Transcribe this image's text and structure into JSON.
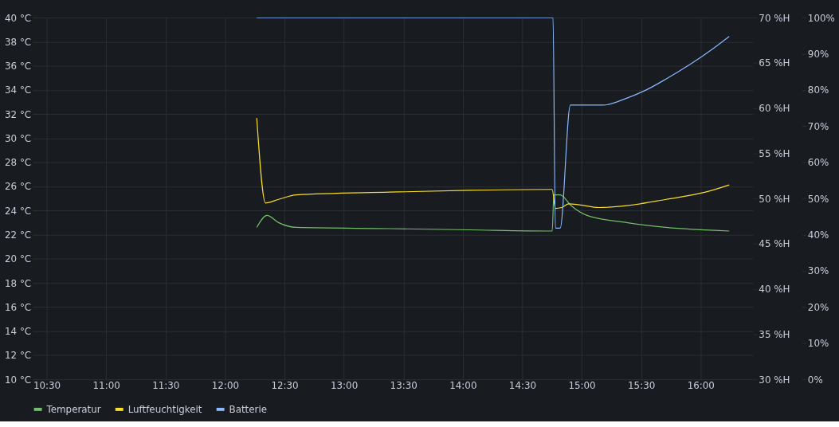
{
  "chart_data": {
    "type": "line",
    "xlim": [
      10.38,
      16.44
    ],
    "xticks": [
      {
        "value": 10.5,
        "label": "10:30"
      },
      {
        "value": 11,
        "label": "11:00"
      },
      {
        "value": 11.5,
        "label": "11:30"
      },
      {
        "value": 12,
        "label": "12:00"
      },
      {
        "value": 12.5,
        "label": "12:30"
      },
      {
        "value": 13,
        "label": "13:00"
      },
      {
        "value": 13.5,
        "label": "13:30"
      },
      {
        "value": 14,
        "label": "14:00"
      },
      {
        "value": 14.5,
        "label": "14:30"
      },
      {
        "value": 15,
        "label": "15:00"
      },
      {
        "value": 15.5,
        "label": "15:30"
      },
      {
        "value": 16,
        "label": "16:00"
      }
    ],
    "ylim": [
      10,
      40
    ],
    "yticks": [
      {
        "value": 10,
        "label": "10 °C"
      },
      {
        "value": 12,
        "label": "12 °C"
      },
      {
        "value": 14,
        "label": "14 °C"
      },
      {
        "value": 16,
        "label": "16 °C"
      },
      {
        "value": 18,
        "label": "18 °C"
      },
      {
        "value": 20,
        "label": "20 °C"
      },
      {
        "value": 22,
        "label": "22 °C"
      },
      {
        "value": 24,
        "label": "24 °C"
      },
      {
        "value": 26,
        "label": "26 °C"
      },
      {
        "value": 28,
        "label": "28 °C"
      },
      {
        "value": 30,
        "label": "30 °C"
      },
      {
        "value": 32,
        "label": "32 °C"
      },
      {
        "value": 34,
        "label": "34 °C"
      },
      {
        "value": 36,
        "label": "36 °C"
      },
      {
        "value": 38,
        "label": "38 °C"
      },
      {
        "value": 40,
        "label": "40 °C"
      }
    ],
    "y2lim": [
      30,
      70
    ],
    "y2ticks": [
      {
        "value": 30,
        "label": "30 %H"
      },
      {
        "value": 35,
        "label": "35 %H"
      },
      {
        "value": 40,
        "label": "40 %H"
      },
      {
        "value": 45,
        "label": "45 %H"
      },
      {
        "value": 50,
        "label": "50 %H"
      },
      {
        "value": 55,
        "label": "55 %H"
      },
      {
        "value": 60,
        "label": "60 %H"
      },
      {
        "value": 65,
        "label": "65 %H"
      },
      {
        "value": 70,
        "label": "70 %H"
      }
    ],
    "y3lim": [
      0,
      100
    ],
    "y3ticks": [
      {
        "value": 0,
        "label": "0%"
      },
      {
        "value": 10,
        "label": "10%"
      },
      {
        "value": 20,
        "label": "20%"
      },
      {
        "value": 30,
        "label": "30%"
      },
      {
        "value": 40,
        "label": "40%"
      },
      {
        "value": 50,
        "label": "50%"
      },
      {
        "value": 60,
        "label": "60%"
      },
      {
        "value": 70,
        "label": "70%"
      },
      {
        "value": 80,
        "label": "80%"
      },
      {
        "value": 90,
        "label": "90%"
      },
      {
        "value": 100,
        "label": "100%"
      }
    ],
    "grid": true,
    "legend": "bottom",
    "marker": "none",
    "line_style": "solid",
    "series": [
      {
        "name": "Temperatur",
        "color": "#73bf69",
        "axis": "y",
        "x": [
          12.267,
          12.354,
          12.45,
          12.6,
          13.384,
          14.048,
          14.752,
          14.766,
          14.819,
          14.912,
          15.045,
          15.377,
          15.709,
          16.241
        ],
        "values": [
          22.6,
          23.6,
          23.0,
          22.6,
          22.5,
          22.4,
          22.3,
          25.3,
          25.3,
          24.4,
          23.6,
          23.0,
          22.6,
          22.3
        ]
      },
      {
        "name": "Luftfeuchtigkeit",
        "color": "#fade2a",
        "axis": "y2",
        "x": [
          12.267,
          12.341,
          12.45,
          12.6,
          13.384,
          14.048,
          14.752,
          14.779,
          14.832,
          14.892,
          14.978,
          15.144,
          15.377,
          15.709,
          16.041,
          16.241
        ],
        "values": [
          58.9,
          49.5,
          49.9,
          50.4,
          50.7,
          50.9,
          51.0,
          48.9,
          49.0,
          49.4,
          49.3,
          49.0,
          49.2,
          49.9,
          50.7,
          51.5
        ]
      },
      {
        "name": "Batterie",
        "color": "#8ab8ff",
        "axis": "y3",
        "x": [
          12.267,
          14.759,
          14.779,
          14.819,
          14.905,
          15.178,
          15.377,
          15.543,
          15.709,
          15.909,
          16.108,
          16.241
        ],
        "values": [
          100,
          100,
          41.8,
          41.8,
          75.8,
          75.8,
          77.7,
          80,
          83,
          87,
          91.5,
          94.8
        ]
      }
    ]
  }
}
